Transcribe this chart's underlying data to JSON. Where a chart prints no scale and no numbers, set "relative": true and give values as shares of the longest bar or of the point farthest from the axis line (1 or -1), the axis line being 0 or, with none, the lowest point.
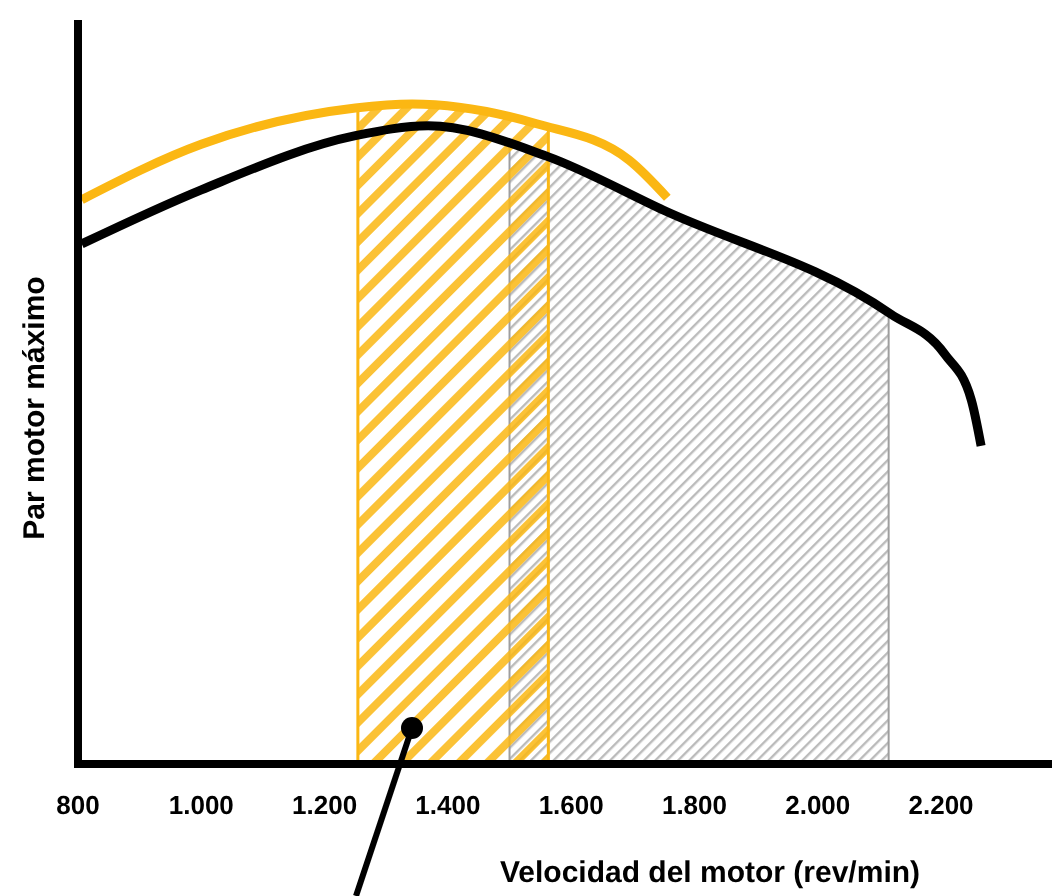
{
  "chart_data": {
    "type": "line",
    "relative": true,
    "xlabel": "Velocidad del motor (rev/min)",
    "ylabel": "Par motor máximo",
    "xlim": [
      800,
      2380
    ],
    "xticks": [
      800,
      {
        "value": 1000,
        "label": "1.000"
      },
      {
        "value": 1200,
        "label": "1.200"
      },
      {
        "value": 1400,
        "label": "1.400"
      },
      {
        "value": 1600,
        "label": "1.600"
      },
      {
        "value": 1800,
        "label": "1.800"
      },
      {
        "value": 2000,
        "label": "2.000"
      },
      {
        "value": 2200,
        "label": "2.200"
      }
    ],
    "series": [
      {
        "color": "#fbb713",
        "x": [
          806,
          1000,
          1250,
          1342,
          1544,
          1694,
          1756
        ],
        "values": [
          0.855,
          0.939,
          0.994,
          1,
          0.97,
          0.915,
          0.858
        ]
      },
      {
        "color": "#000000",
        "x": [
          806,
          1000,
          1250,
          1368,
          1560,
          1750,
          2118,
          2206,
          2249,
          2265
        ],
        "values": [
          0.788,
          0.87,
          0.952,
          0.967,
          0.921,
          0.839,
          0.682,
          0.621,
          0.552,
          0.482
        ]
      }
    ],
    "bands": [
      {
        "axis": "x",
        "from": 1500,
        "to": 2115,
        "color": "#9e9e9e"
      },
      {
        "axis": "x",
        "from": 1254,
        "to": 1563,
        "color": "#fbb713"
      }
    ],
    "line_style": "solid",
    "marker": "none"
  }
}
